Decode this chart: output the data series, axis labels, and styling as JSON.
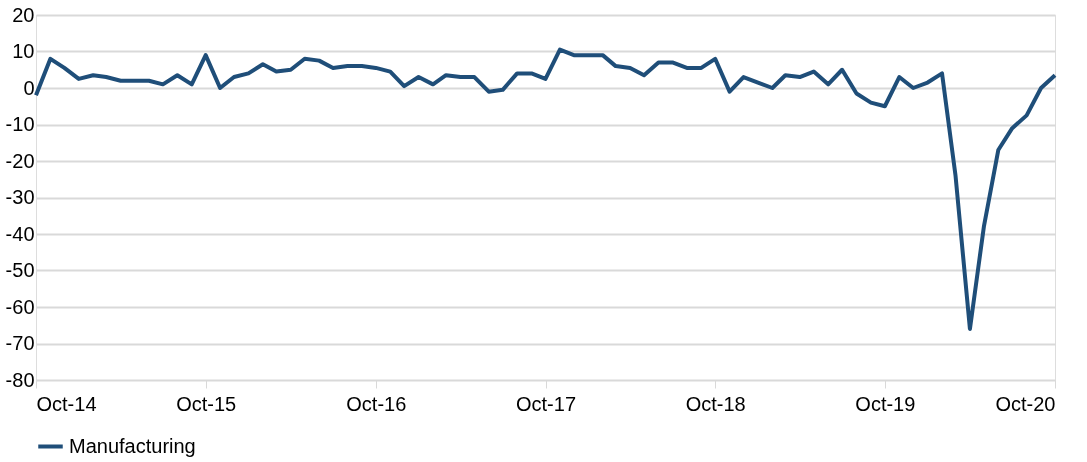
{
  "chart_data": {
    "type": "line",
    "x": [
      "2014-10",
      "2014-11",
      "2014-12",
      "2015-01",
      "2015-02",
      "2015-03",
      "2015-04",
      "2015-05",
      "2015-06",
      "2015-07",
      "2015-08",
      "2015-09",
      "2015-10",
      "2015-11",
      "2015-12",
      "2016-01",
      "2016-02",
      "2016-03",
      "2016-04",
      "2016-05",
      "2016-06",
      "2016-07",
      "2016-08",
      "2016-09",
      "2016-10",
      "2016-11",
      "2016-12",
      "2017-01",
      "2017-02",
      "2017-03",
      "2017-04",
      "2017-05",
      "2017-06",
      "2017-07",
      "2017-08",
      "2017-09",
      "2017-10",
      "2017-11",
      "2017-12",
      "2018-01",
      "2018-02",
      "2018-03",
      "2018-04",
      "2018-05",
      "2018-06",
      "2018-07",
      "2018-08",
      "2018-09",
      "2018-10",
      "2018-11",
      "2018-12",
      "2019-01",
      "2019-02",
      "2019-03",
      "2019-04",
      "2019-05",
      "2019-06",
      "2019-07",
      "2019-08",
      "2019-09",
      "2019-10",
      "2019-11",
      "2019-12",
      "2020-01",
      "2020-02",
      "2020-03",
      "2020-04",
      "2020-05",
      "2020-06",
      "2020-07",
      "2020-08",
      "2020-09",
      "2020-10"
    ],
    "series": [
      {
        "name": "Manufacturing",
        "color": "#1f4e79",
        "values": [
          -2,
          8,
          5.5,
          2.5,
          3.5,
          3,
          2,
          2,
          2,
          1,
          3.5,
          1,
          9,
          0,
          3,
          4,
          6.5,
          4.5,
          5,
          8,
          7.5,
          5.5,
          6,
          6,
          5.5,
          4.5,
          0.5,
          3,
          1,
          3.5,
          3,
          3,
          -1,
          -0.5,
          4,
          4,
          2.5,
          10.5,
          9,
          9,
          9,
          6,
          5.5,
          3.5,
          7,
          7,
          5.5,
          5.5,
          8,
          -1,
          3,
          1.5,
          0,
          3.5,
          3,
          4.5,
          1,
          5,
          -1.5,
          -4,
          -5,
          3,
          0,
          1.5,
          4,
          -24,
          -66,
          -38,
          -17,
          -11,
          -7.5,
          0,
          3.5
        ]
      }
    ],
    "xlim": [
      "2014-10",
      "2020-10"
    ],
    "xticks": [
      {
        "value": "2014-10",
        "label": "Oct-14"
      },
      {
        "value": "2015-10",
        "label": "Oct-15"
      },
      {
        "value": "2016-10",
        "label": "Oct-16"
      },
      {
        "value": "2017-10",
        "label": "Oct-17"
      },
      {
        "value": "2018-10",
        "label": "Oct-18"
      },
      {
        "value": "2019-10",
        "label": "Oct-19"
      },
      {
        "value": "2020-10",
        "label": "Oct-20"
      }
    ],
    "ylim": [
      -80,
      20
    ],
    "yticks": [
      -80,
      -70,
      -60,
      -50,
      -40,
      -30,
      -20,
      -10,
      0,
      10,
      20
    ],
    "grid": "y",
    "legend": "bottom",
    "marker": "none",
    "line_style": "solid"
  }
}
